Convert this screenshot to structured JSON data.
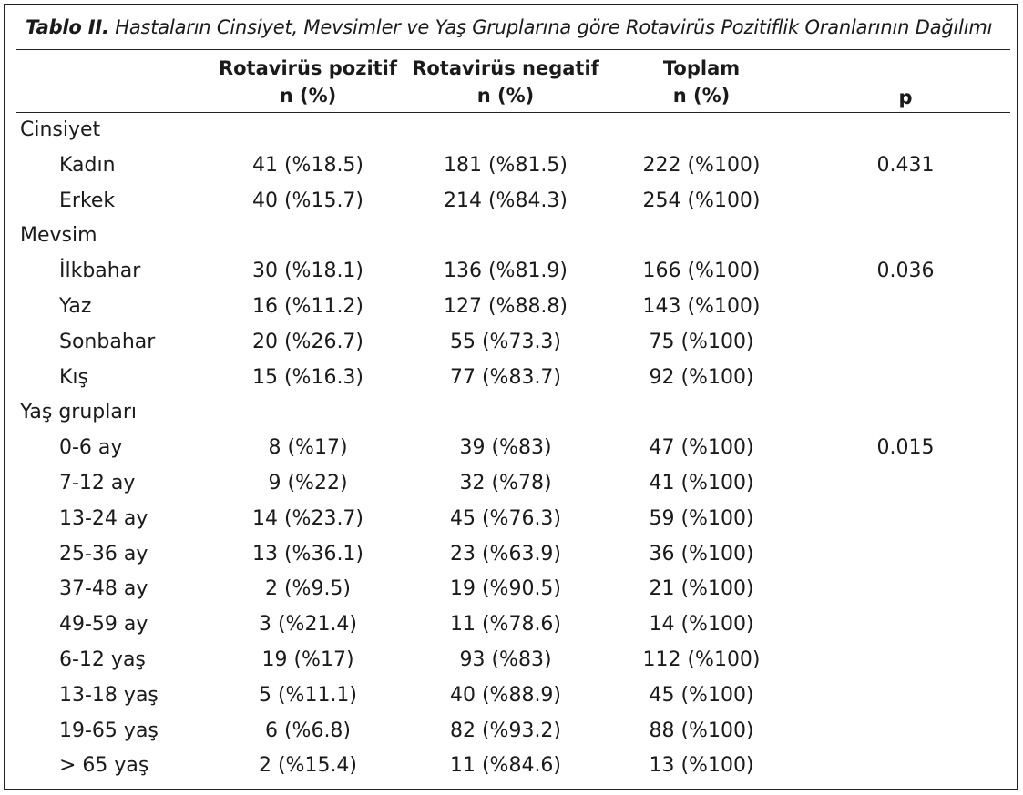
{
  "title": {
    "lead": "Tablo II.",
    "text": " Hastaların Cinsiyet, Mevsimler ve Yaş Gruplarına göre Rotavirüs Pozitiflik Oranlarının Dağılımı"
  },
  "headers": {
    "pos_line1": "Rotavirüs pozitif",
    "pos_line2": "n (%)",
    "neg_line1": "Rotavirüs negatif",
    "neg_line2": "n (%)",
    "tot_line1": "Toplam",
    "tot_line2": "n (%)",
    "p": "p"
  },
  "rows": [
    {
      "label": "Cinsiyet",
      "pos": "",
      "neg": "",
      "tot": "",
      "p": ""
    },
    {
      "label": "Kadın",
      "pos": "41 (%18.5)",
      "neg": "181 (%81.5)",
      "tot": "222 (%100)",
      "p": "0.431"
    },
    {
      "label": "Erkek",
      "pos": "40 (%15.7)",
      "neg": "214 (%84.3)",
      "tot": "254 (%100)",
      "p": ""
    },
    {
      "label": "Mevsim",
      "pos": "",
      "neg": "",
      "tot": "",
      "p": ""
    },
    {
      "label": "İlkbahar",
      "pos": "30 (%18.1)",
      "neg": "136 (%81.9)",
      "tot": "166 (%100)",
      "p": "0.036"
    },
    {
      "label": "Yaz",
      "pos": "16 (%11.2)",
      "neg": "127 (%88.8)",
      "tot": "143 (%100)",
      "p": ""
    },
    {
      "label": "Sonbahar",
      "pos": "20 (%26.7)",
      "neg": "55 (%73.3)",
      "tot": "75 (%100)",
      "p": ""
    },
    {
      "label": "Kış",
      "pos": "15 (%16.3)",
      "neg": "77 (%83.7)",
      "tot": "92 (%100)",
      "p": ""
    },
    {
      "label": "Yaş grupları",
      "pos": "",
      "neg": "",
      "tot": "",
      "p": ""
    },
    {
      "label": "0-6 ay",
      "pos": "8 (%17)",
      "neg": "39 (%83)",
      "tot": "47 (%100)",
      "p": "0.015"
    },
    {
      "label": "7-12 ay",
      "pos": "9 (%22)",
      "neg": "32 (%78)",
      "tot": "41 (%100)",
      "p": ""
    },
    {
      "label": "13-24 ay",
      "pos": "14 (%23.7)",
      "neg": "45 (%76.3)",
      "tot": "59 (%100)",
      "p": ""
    },
    {
      "label": "25-36 ay",
      "pos": "13 (%36.1)",
      "neg": "23 (%63.9)",
      "tot": "36 (%100)",
      "p": ""
    },
    {
      "label": "37-48 ay",
      "pos": "2 (%9.5)",
      "neg": "19 (%90.5)",
      "tot": "21 (%100)",
      "p": ""
    },
    {
      "label": "49-59 ay",
      "pos": "3 (%21.4)",
      "neg": "11 (%78.6)",
      "tot": "14 (%100)",
      "p": ""
    },
    {
      "label": "6-12 yaş",
      "pos": "19 (%17)",
      "neg": "93 (%83)",
      "tot": "112 (%100)",
      "p": ""
    },
    {
      "label": "13-18 yaş",
      "pos": "5 (%11.1)",
      "neg": "40 (%88.9)",
      "tot": "45 (%100)",
      "p": ""
    },
    {
      "label": "19-65 yaş",
      "pos": "6 (%6.8)",
      "neg": "82 (%93.2)",
      "tot": "88 (%100)",
      "p": ""
    },
    {
      "label": "> 65 yaş",
      "pos": "2 (%15.4)",
      "neg": "11 (%84.6)",
      "tot": "13 (%100)",
      "p": ""
    }
  ]
}
